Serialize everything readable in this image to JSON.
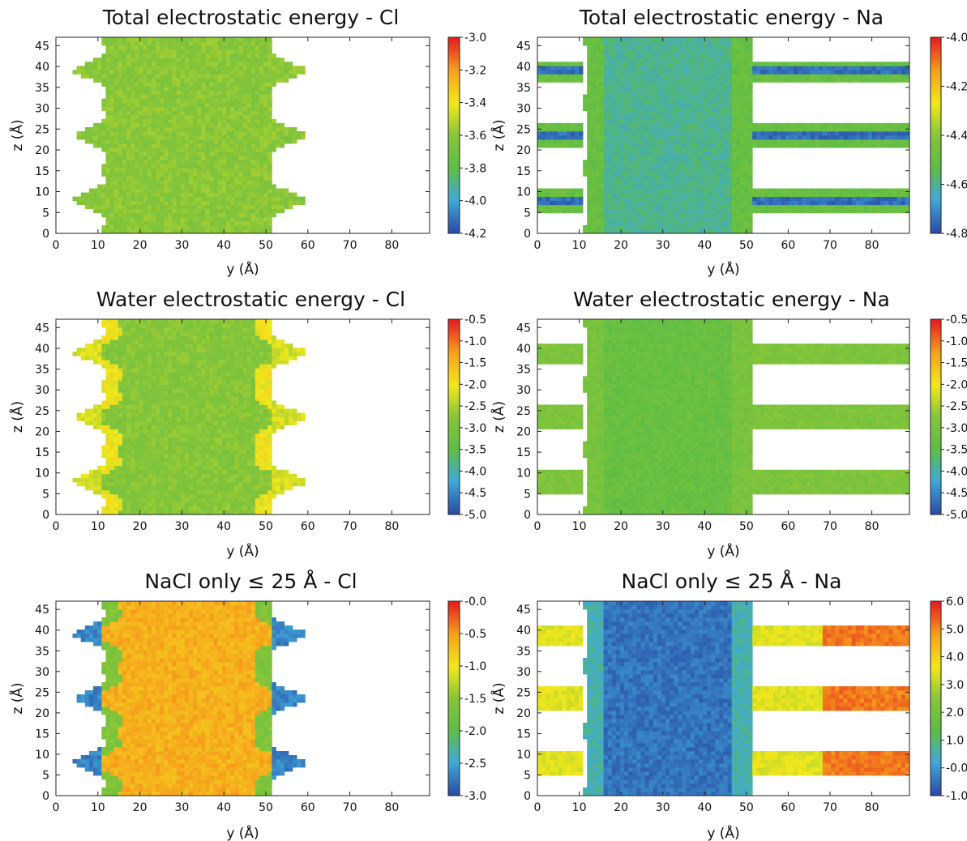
{
  "figure": {
    "y_axis_label": "y (Å)",
    "z_axis_label": "z (Å)"
  },
  "chart_data": [
    {
      "type": "heatmap",
      "title": "Total electrostatic energy - Cl",
      "xlabel": "y (Å)",
      "ylabel": "z (Å)",
      "xlim": [
        0,
        89
      ],
      "ylim": [
        0,
        47
      ],
      "xticks": [
        "0",
        "10",
        "20",
        "30",
        "40",
        "50",
        "60",
        "70",
        "80"
      ],
      "yticks": [
        "0",
        "5",
        "10",
        "15",
        "20",
        "25",
        "30",
        "35",
        "40",
        "45"
      ],
      "colorbar": {
        "min": -4.2,
        "max": -3.0,
        "ticks": [
          "-4.2",
          "-4.0",
          "-3.8",
          "-3.6",
          "-3.4",
          "-3.2",
          "-3.0"
        ]
      },
      "pattern": "cl-channel",
      "slab_y": [
        11,
        51
      ],
      "lobes_z": [
        8,
        23.5,
        39
      ],
      "lobe_extent_y": [
        2,
        61
      ],
      "value_core": -3.6,
      "value_edge": -3.6,
      "value_lobe": -3.6,
      "value_band": null
    },
    {
      "type": "heatmap",
      "title": "Total electrostatic energy - Na",
      "xlabel": "y (Å)",
      "ylabel": "z (Å)",
      "xlim": [
        0,
        89
      ],
      "ylim": [
        0,
        47
      ],
      "xticks": [
        "0",
        "10",
        "20",
        "30",
        "40",
        "50",
        "60",
        "70",
        "80"
      ],
      "yticks": [
        "0",
        "5",
        "10",
        "15",
        "20",
        "25",
        "30",
        "35",
        "40",
        "45"
      ],
      "colorbar": {
        "min": -4.8,
        "max": -4.0,
        "ticks": [
          "-4.8",
          "-4.6",
          "-4.4",
          "-4.2",
          "-4.0"
        ]
      },
      "pattern": "na-channel",
      "slab_y": [
        11,
        51
      ],
      "bands_z": [
        [
          5,
          10.5
        ],
        [
          20.5,
          26
        ],
        [
          36,
          41.5
        ]
      ],
      "value_core": -4.6,
      "value_edge": -4.5,
      "value_band": -4.5,
      "value_band_center": -4.75
    },
    {
      "type": "heatmap",
      "title": "Water electrostatic energy - Cl",
      "xlabel": "y (Å)",
      "ylabel": "z (Å)",
      "xlim": [
        0,
        89
      ],
      "ylim": [
        0,
        47
      ],
      "xticks": [
        "0",
        "10",
        "20",
        "30",
        "40",
        "50",
        "60",
        "70",
        "80"
      ],
      "yticks": [
        "0",
        "5",
        "10",
        "15",
        "20",
        "25",
        "30",
        "35",
        "40",
        "45"
      ],
      "colorbar": {
        "min": -5.0,
        "max": -0.5,
        "ticks": [
          "-5.0",
          "-4.5",
          "-4.0",
          "-3.5",
          "-3.0",
          "-2.5",
          "-2.0",
          "-1.5",
          "-1.0",
          "-0.5"
        ]
      },
      "pattern": "cl-channel",
      "slab_y": [
        11,
        51
      ],
      "lobes_z": [
        8,
        23.5,
        39
      ],
      "lobe_extent_y": [
        2,
        61
      ],
      "value_core": -2.8,
      "value_edge": -2.0,
      "value_lobe": -2.2,
      "value_band": null
    },
    {
      "type": "heatmap",
      "title": "Water electrostatic energy - Na",
      "xlabel": "y (Å)",
      "ylabel": "z (Å)",
      "xlim": [
        0,
        89
      ],
      "ylim": [
        0,
        47
      ],
      "xticks": [
        "0",
        "10",
        "20",
        "30",
        "40",
        "50",
        "60",
        "70",
        "80"
      ],
      "yticks": [
        "0",
        "5",
        "10",
        "15",
        "20",
        "25",
        "30",
        "35",
        "40",
        "45"
      ],
      "colorbar": {
        "min": -5.0,
        "max": -0.5,
        "ticks": [
          "-5.0",
          "-4.5",
          "-4.0",
          "-3.5",
          "-3.0",
          "-2.5",
          "-2.0",
          "-1.5",
          "-1.0",
          "-0.5"
        ]
      },
      "pattern": "na-channel",
      "slab_y": [
        11,
        51
      ],
      "bands_z": [
        [
          5,
          10.5
        ],
        [
          20.5,
          26
        ],
        [
          36,
          41.5
        ]
      ],
      "value_core": -3.3,
      "value_edge": -3.0,
      "value_band": -2.9,
      "value_band_center": -2.9
    },
    {
      "type": "heatmap",
      "title": "NaCl only ≤  25 Å  - Cl",
      "xlabel": "y (Å)",
      "ylabel": "z (Å)",
      "xlim": [
        0,
        89
      ],
      "ylim": [
        0,
        47
      ],
      "xticks": [
        "0",
        "10",
        "20",
        "30",
        "40",
        "50",
        "60",
        "70",
        "80"
      ],
      "yticks": [
        "0",
        "5",
        "10",
        "15",
        "20",
        "25",
        "30",
        "35",
        "40",
        "45"
      ],
      "colorbar": {
        "min": -3.0,
        "max": 0.0,
        "ticks": [
          "-3.0",
          "-2.5",
          "-2.0",
          "-1.5",
          "-1.0",
          "-0.5",
          "-0.0"
        ]
      },
      "pattern": "cl-channel",
      "slab_y": [
        11,
        51
      ],
      "lobes_z": [
        8,
        23.5,
        39
      ],
      "lobe_extent_y": [
        2,
        61
      ],
      "value_core": -0.6,
      "value_edge": -1.6,
      "value_lobe": -2.7,
      "value_band": null
    },
    {
      "type": "heatmap",
      "title": "NaCl only ≤  25 Å  - Na",
      "xlabel": "y (Å)",
      "ylabel": "z (Å)",
      "xlim": [
        0,
        89
      ],
      "ylim": [
        0,
        47
      ],
      "xticks": [
        "0",
        "10",
        "20",
        "30",
        "40",
        "50",
        "60",
        "70",
        "80"
      ],
      "yticks": [
        "0",
        "5",
        "10",
        "15",
        "20",
        "25",
        "30",
        "35",
        "40",
        "45"
      ],
      "colorbar": {
        "min": -1.0,
        "max": 6.0,
        "ticks": [
          "-1.0",
          "-0.0",
          "1.0",
          "2.0",
          "3.0",
          "4.0",
          "5.0",
          "6.0"
        ]
      },
      "pattern": "na-channel",
      "slab_y": [
        11,
        51
      ],
      "bands_z": [
        [
          5,
          10.5
        ],
        [
          20.5,
          26
        ],
        [
          36,
          41.5
        ]
      ],
      "value_core": -0.5,
      "value_edge": 0.5,
      "value_band": 3.5,
      "value_band_far": 5.2,
      "value_band_center": 3.5
    }
  ],
  "colors": {
    "colormap": [
      "#2b4ca6",
      "#3fa9d8",
      "#5ebd45",
      "#86c53a",
      "#f2e81c",
      "#f6a21d",
      "#e8201e"
    ],
    "background": "#ffffff",
    "axis": "#222222"
  }
}
